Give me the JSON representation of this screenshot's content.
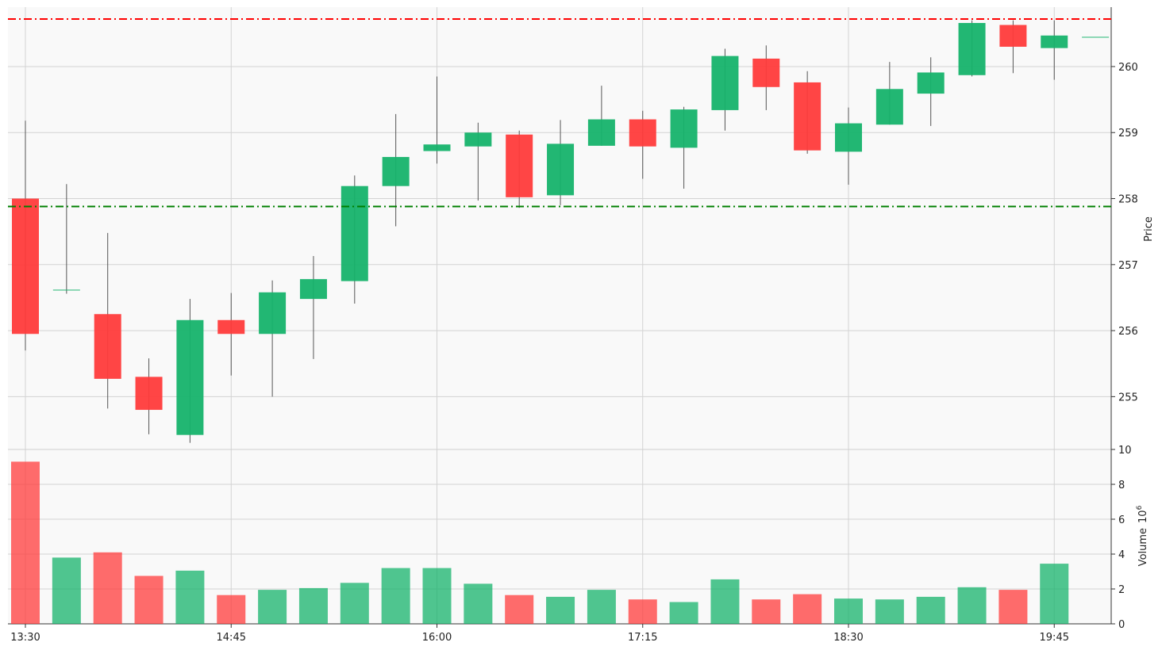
{
  "chart_data": {
    "type": "candlestick",
    "x": [
      "13:30",
      "13:45",
      "14:00",
      "14:15",
      "14:30",
      "14:45",
      "15:00",
      "15:15",
      "15:30",
      "15:45",
      "16:00",
      "16:15",
      "16:30",
      "16:45",
      "17:00",
      "17:15",
      "17:30",
      "17:45",
      "18:00",
      "18:15",
      "18:30",
      "18:45",
      "19:00",
      "19:15",
      "19:30",
      "19:45",
      "20:00"
    ],
    "open": [
      258.0,
      256.62,
      256.25,
      255.3,
      254.42,
      256.16,
      255.95,
      256.48,
      256.75,
      258.19,
      258.72,
      258.79,
      258.97,
      258.05,
      258.8,
      259.2,
      258.77,
      259.34,
      260.12,
      259.76,
      258.71,
      259.12,
      259.59,
      259.87,
      260.63,
      260.28,
      260.45
    ],
    "high": [
      259.18,
      258.22,
      257.48,
      255.58,
      256.48,
      256.57,
      256.76,
      257.13,
      258.35,
      259.28,
      259.85,
      259.15,
      259.03,
      259.19,
      259.71,
      259.33,
      259.39,
      260.27,
      260.32,
      259.93,
      259.38,
      260.07,
      260.14,
      260.7,
      260.7,
      260.7,
      260.45
    ],
    "low": [
      255.7,
      256.56,
      254.82,
      254.43,
      254.3,
      255.32,
      255.0,
      255.57,
      256.41,
      257.58,
      258.53,
      257.97,
      257.86,
      257.9,
      258.8,
      258.3,
      258.15,
      259.03,
      259.34,
      258.68,
      258.21,
      259.12,
      259.1,
      259.85,
      259.9,
      259.8,
      260.45
    ],
    "close": [
      255.95,
      256.62,
      255.27,
      254.8,
      256.16,
      255.95,
      256.58,
      256.78,
      258.19,
      258.63,
      258.82,
      259.0,
      258.02,
      258.83,
      259.2,
      258.79,
      259.35,
      260.16,
      259.69,
      258.73,
      259.14,
      259.66,
      259.91,
      260.66,
      260.3,
      260.47,
      260.45
    ],
    "volume": [
      9.3,
      3.8,
      4.1,
      2.75,
      3.05,
      1.65,
      1.95,
      2.05,
      2.35,
      3.2,
      3.2,
      2.3,
      1.65,
      1.55,
      1.95,
      1.4,
      1.25,
      2.55,
      1.4,
      1.7,
      1.45,
      1.4,
      1.55,
      2.1,
      1.95,
      3.45,
      0
    ],
    "hlines": [
      {
        "value": 260.72,
        "color": "#ff0000"
      },
      {
        "value": 257.88,
        "color": "#008000"
      }
    ],
    "xticks": [
      "13:30",
      "14:45",
      "16:00",
      "17:15",
      "18:30",
      "19:45"
    ],
    "price_axis": {
      "label": "Price",
      "ticks": [
        255,
        256,
        257,
        258,
        259,
        260
      ],
      "range": [
        254.2,
        260.9
      ]
    },
    "volume_axis": {
      "label": "Volume",
      "exponent": "6",
      "ticks": [
        0,
        2,
        4,
        6,
        8,
        10
      ],
      "range": [
        0,
        10
      ]
    },
    "colors": {
      "up": "#16b36b",
      "down": "#ff3b3b",
      "grid": "#d3d3d3",
      "panel_bg": "#f9f9f9",
      "wick": "#555555"
    }
  }
}
